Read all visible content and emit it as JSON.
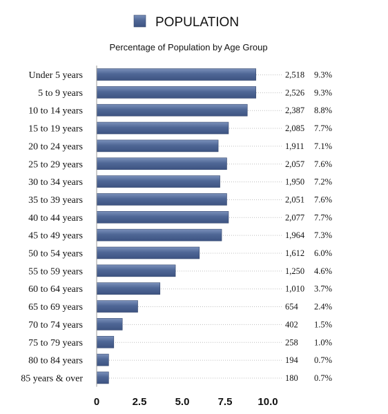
{
  "chart_data": {
    "type": "bar",
    "orientation": "horizontal",
    "title": "",
    "subtitle": "Percentage of Population by Age Group",
    "legend": {
      "position": "top",
      "entries": [
        "POPULATION"
      ]
    },
    "categories": [
      "Under 5 years",
      "5 to 9 years",
      "10 to 14 years",
      "15 to 19 years",
      "20 to 24 years",
      "25 to 29 years",
      "30 to 34 years",
      "35 to 39 years",
      "40 to 44 years",
      "45 to 49 years",
      "50 to 54 years",
      "55 to 59 years",
      "60 to 64 years",
      "65 to 69 years",
      "70 to 74 years",
      "75 to 79 years",
      "80 to 84 years",
      "85 years & over"
    ],
    "series": [
      {
        "name": "POPULATION",
        "values": [
          9.3,
          9.3,
          8.8,
          7.7,
          7.1,
          7.6,
          7.2,
          7.6,
          7.7,
          7.3,
          6.0,
          4.6,
          3.7,
          2.4,
          1.5,
          1.0,
          0.7,
          0.7
        ]
      }
    ],
    "counts": [
      "2,518",
      "2,526",
      "2,387",
      "2,085",
      "1,911",
      "2,057",
      "1,950",
      "2,051",
      "2,077",
      "1,964",
      "1,612",
      "1,250",
      "1,010",
      "654",
      "402",
      "258",
      "194",
      "180"
    ],
    "percent_labels": [
      "9.3%",
      "9.3%",
      "8.8%",
      "7.7%",
      "7.1%",
      "7.6%",
      "7.2%",
      "7.6%",
      "7.7%",
      "7.3%",
      "6.0%",
      "4.6%",
      "3.7%",
      "2.4%",
      "1.5%",
      "1.0%",
      "0.7%",
      "0.7%"
    ],
    "xlim": [
      0,
      10
    ],
    "x_ticks": [
      "0",
      "2.5",
      "5.0",
      "7.5",
      "10.0"
    ],
    "x_tick_values": [
      0,
      2.5,
      5.0,
      7.5,
      10.0
    ],
    "grid": false,
    "colors": {
      "bar": "#4f6796",
      "bar_light": "#7b91bb",
      "bar_dark": "#3e5482"
    }
  }
}
